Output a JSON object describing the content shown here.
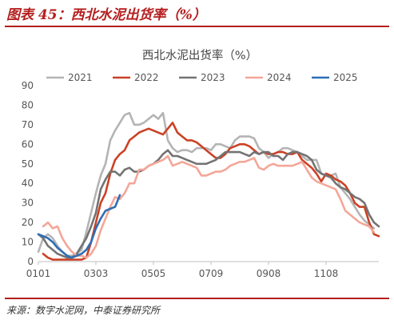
{
  "header": {
    "title": "图表 45：西北水泥出货率（%）"
  },
  "footer": {
    "source": "来源：数字水泥网，中泰证券研究所"
  },
  "chart_data": {
    "type": "line",
    "title": "西北水泥出货率（%）",
    "x_ticks": [
      "0101",
      "0303",
      "0505",
      "0709",
      "0908",
      "1108"
    ],
    "x_tick_positions": [
      1,
      13,
      25,
      37,
      49,
      61
    ],
    "x_range": [
      1,
      72
    ],
    "ylim": [
      0,
      90
    ],
    "y_ticks": [
      0,
      10,
      20,
      30,
      40,
      50,
      60,
      70,
      80,
      90
    ],
    "grid": false,
    "legend": "top",
    "series": [
      {
        "name": "2021",
        "color": "#b4b4b4",
        "points": [
          [
            1,
            5
          ],
          [
            2,
            12
          ],
          [
            3,
            14
          ],
          [
            4,
            12
          ],
          [
            5,
            8
          ],
          [
            6,
            5
          ],
          [
            7,
            3
          ],
          [
            8,
            3
          ],
          [
            9,
            4
          ],
          [
            10,
            6
          ],
          [
            11,
            15
          ],
          [
            12,
            25
          ],
          [
            13,
            35
          ],
          [
            14,
            44
          ],
          [
            15,
            50
          ],
          [
            16,
            62
          ],
          [
            17,
            67
          ],
          [
            18,
            71
          ],
          [
            19,
            75
          ],
          [
            20,
            76
          ],
          [
            21,
            70
          ],
          [
            22,
            70
          ],
          [
            23,
            71
          ],
          [
            24,
            73
          ],
          [
            25,
            75
          ],
          [
            26,
            73
          ],
          [
            27,
            76
          ],
          [
            28,
            62
          ],
          [
            29,
            58
          ],
          [
            30,
            56
          ],
          [
            31,
            57
          ],
          [
            32,
            57
          ],
          [
            33,
            56
          ],
          [
            34,
            58
          ],
          [
            35,
            58
          ],
          [
            36,
            58
          ],
          [
            37,
            57
          ],
          [
            38,
            60
          ],
          [
            39,
            60
          ],
          [
            40,
            59
          ],
          [
            41,
            58
          ],
          [
            42,
            62
          ],
          [
            43,
            64
          ],
          [
            44,
            64
          ],
          [
            45,
            64
          ],
          [
            46,
            63
          ],
          [
            47,
            58
          ],
          [
            48,
            56
          ],
          [
            49,
            53
          ],
          [
            50,
            55
          ],
          [
            51,
            56
          ],
          [
            52,
            58
          ],
          [
            53,
            58
          ],
          [
            54,
            57
          ],
          [
            55,
            56
          ],
          [
            56,
            54
          ],
          [
            57,
            52
          ],
          [
            58,
            52
          ],
          [
            59,
            52
          ],
          [
            60,
            45
          ],
          [
            61,
            44
          ],
          [
            62,
            44
          ],
          [
            63,
            45
          ],
          [
            64,
            38
          ],
          [
            65,
            35
          ],
          [
            66,
            32
          ],
          [
            67,
            28
          ],
          [
            68,
            24
          ],
          [
            69,
            21
          ],
          [
            70,
            19
          ],
          [
            71,
            17
          ]
        ]
      },
      {
        "name": "2022",
        "color": "#cc4125",
        "points": [
          [
            2,
            4
          ],
          [
            3,
            2
          ],
          [
            4,
            1
          ],
          [
            5,
            1
          ],
          [
            6,
            1
          ],
          [
            7,
            1
          ],
          [
            8,
            1
          ],
          [
            9,
            1
          ],
          [
            10,
            1
          ],
          [
            11,
            2
          ],
          [
            12,
            10
          ],
          [
            13,
            20
          ],
          [
            14,
            30
          ],
          [
            15,
            35
          ],
          [
            16,
            45
          ],
          [
            17,
            52
          ],
          [
            18,
            55
          ],
          [
            19,
            57
          ],
          [
            20,
            62
          ],
          [
            21,
            64
          ],
          [
            22,
            66
          ],
          [
            23,
            67
          ],
          [
            24,
            68
          ],
          [
            25,
            67
          ],
          [
            26,
            66
          ],
          [
            27,
            65
          ],
          [
            28,
            68
          ],
          [
            29,
            71
          ],
          [
            30,
            66
          ],
          [
            31,
            64
          ],
          [
            32,
            62
          ],
          [
            33,
            62
          ],
          [
            34,
            61
          ],
          [
            35,
            59
          ],
          [
            36,
            57
          ],
          [
            37,
            55
          ],
          [
            38,
            53
          ],
          [
            39,
            53
          ],
          [
            40,
            55
          ],
          [
            41,
            58
          ],
          [
            42,
            59
          ],
          [
            43,
            60
          ],
          [
            44,
            60
          ],
          [
            45,
            59
          ],
          [
            46,
            57
          ],
          [
            47,
            55
          ],
          [
            48,
            56
          ],
          [
            49,
            55
          ],
          [
            50,
            55
          ],
          [
            51,
            56
          ],
          [
            52,
            56
          ],
          [
            53,
            55
          ],
          [
            54,
            55
          ],
          [
            55,
            56
          ],
          [
            56,
            52
          ],
          [
            57,
            50
          ],
          [
            58,
            48
          ],
          [
            59,
            45
          ],
          [
            60,
            41
          ],
          [
            61,
            45
          ],
          [
            62,
            44
          ],
          [
            63,
            42
          ],
          [
            64,
            41
          ],
          [
            65,
            39
          ],
          [
            66,
            35
          ],
          [
            67,
            30
          ],
          [
            68,
            28
          ],
          [
            69,
            28
          ],
          [
            70,
            20
          ],
          [
            71,
            14
          ],
          [
            72,
            13
          ]
        ]
      },
      {
        "name": "2023",
        "color": "#737373",
        "points": [
          [
            1,
            14
          ],
          [
            2,
            12
          ],
          [
            3,
            8
          ],
          [
            4,
            6
          ],
          [
            5,
            4
          ],
          [
            6,
            3
          ],
          [
            7,
            2
          ],
          [
            8,
            2
          ],
          [
            9,
            4
          ],
          [
            10,
            8
          ],
          [
            11,
            12
          ],
          [
            12,
            18
          ],
          [
            13,
            25
          ],
          [
            14,
            37
          ],
          [
            15,
            42
          ],
          [
            16,
            46
          ],
          [
            17,
            46
          ],
          [
            18,
            44
          ],
          [
            19,
            47
          ],
          [
            20,
            48
          ],
          [
            21,
            46
          ],
          [
            22,
            46
          ],
          [
            23,
            47
          ],
          [
            24,
            49
          ],
          [
            25,
            50
          ],
          [
            26,
            52
          ],
          [
            27,
            55
          ],
          [
            28,
            57
          ],
          [
            29,
            54
          ],
          [
            30,
            54
          ],
          [
            31,
            53
          ],
          [
            32,
            52
          ],
          [
            33,
            51
          ],
          [
            34,
            50
          ],
          [
            35,
            50
          ],
          [
            36,
            50
          ],
          [
            37,
            51
          ],
          [
            38,
            52
          ],
          [
            39,
            54
          ],
          [
            40,
            56
          ],
          [
            41,
            56
          ],
          [
            42,
            56
          ],
          [
            43,
            56
          ],
          [
            44,
            55
          ],
          [
            45,
            54
          ],
          [
            46,
            56
          ],
          [
            47,
            55
          ],
          [
            48,
            56
          ],
          [
            49,
            56
          ],
          [
            50,
            54
          ],
          [
            51,
            54
          ],
          [
            52,
            52
          ],
          [
            53,
            55
          ],
          [
            54,
            56
          ],
          [
            55,
            56
          ],
          [
            56,
            55
          ],
          [
            57,
            54
          ],
          [
            58,
            52
          ],
          [
            59,
            47
          ],
          [
            60,
            45
          ],
          [
            61,
            44
          ],
          [
            62,
            43
          ],
          [
            63,
            40
          ],
          [
            64,
            38
          ],
          [
            65,
            37
          ],
          [
            66,
            35
          ],
          [
            67,
            33
          ],
          [
            68,
            32
          ],
          [
            69,
            30
          ],
          [
            70,
            24
          ],
          [
            71,
            20
          ],
          [
            72,
            18
          ]
        ]
      },
      {
        "name": "2024",
        "color": "#f4a698",
        "points": [
          [
            2,
            18
          ],
          [
            3,
            20
          ],
          [
            4,
            17
          ],
          [
            5,
            18
          ],
          [
            6,
            12
          ],
          [
            7,
            8
          ],
          [
            8,
            5
          ],
          [
            9,
            3
          ],
          [
            10,
            3
          ],
          [
            11,
            2
          ],
          [
            12,
            4
          ],
          [
            13,
            8
          ],
          [
            14,
            16
          ],
          [
            15,
            22
          ],
          [
            16,
            28
          ],
          [
            17,
            33
          ],
          [
            18,
            32
          ],
          [
            19,
            35
          ],
          [
            20,
            40
          ],
          [
            21,
            40
          ],
          [
            22,
            47
          ],
          [
            23,
            47
          ],
          [
            24,
            49
          ],
          [
            25,
            50
          ],
          [
            26,
            51
          ],
          [
            27,
            52
          ],
          [
            28,
            54
          ],
          [
            29,
            49
          ],
          [
            30,
            50
          ],
          [
            31,
            51
          ],
          [
            32,
            50
          ],
          [
            33,
            49
          ],
          [
            34,
            48
          ],
          [
            35,
            44
          ],
          [
            36,
            44
          ],
          [
            37,
            45
          ],
          [
            38,
            46
          ],
          [
            39,
            46
          ],
          [
            40,
            47
          ],
          [
            41,
            49
          ],
          [
            42,
            50
          ],
          [
            43,
            51
          ],
          [
            44,
            51
          ],
          [
            45,
            52
          ],
          [
            46,
            53
          ],
          [
            47,
            48
          ],
          [
            48,
            47
          ],
          [
            49,
            49
          ],
          [
            50,
            50
          ],
          [
            51,
            49
          ],
          [
            52,
            49
          ],
          [
            53,
            49
          ],
          [
            54,
            49
          ],
          [
            55,
            50
          ],
          [
            56,
            51
          ],
          [
            57,
            47
          ],
          [
            58,
            43
          ],
          [
            59,
            41
          ],
          [
            60,
            40
          ],
          [
            61,
            39
          ],
          [
            62,
            38
          ],
          [
            63,
            37
          ],
          [
            64,
            32
          ],
          [
            65,
            26
          ],
          [
            66,
            24
          ],
          [
            67,
            22
          ],
          [
            68,
            20
          ],
          [
            69,
            19
          ],
          [
            70,
            18
          ],
          [
            71,
            15
          ]
        ]
      },
      {
        "name": "2025",
        "color": "#2e6eb5",
        "points": [
          [
            1,
            14
          ],
          [
            2,
            13
          ],
          [
            3,
            12
          ],
          [
            4,
            10
          ],
          [
            5,
            7
          ],
          [
            6,
            5
          ],
          [
            7,
            3
          ],
          [
            8,
            2
          ],
          [
            9,
            3
          ],
          [
            10,
            4
          ],
          [
            11,
            6
          ],
          [
            12,
            10
          ],
          [
            13,
            17
          ],
          [
            14,
            22
          ],
          [
            15,
            26
          ],
          [
            16,
            27
          ],
          [
            17,
            28
          ],
          [
            18,
            34
          ]
        ]
      }
    ]
  }
}
